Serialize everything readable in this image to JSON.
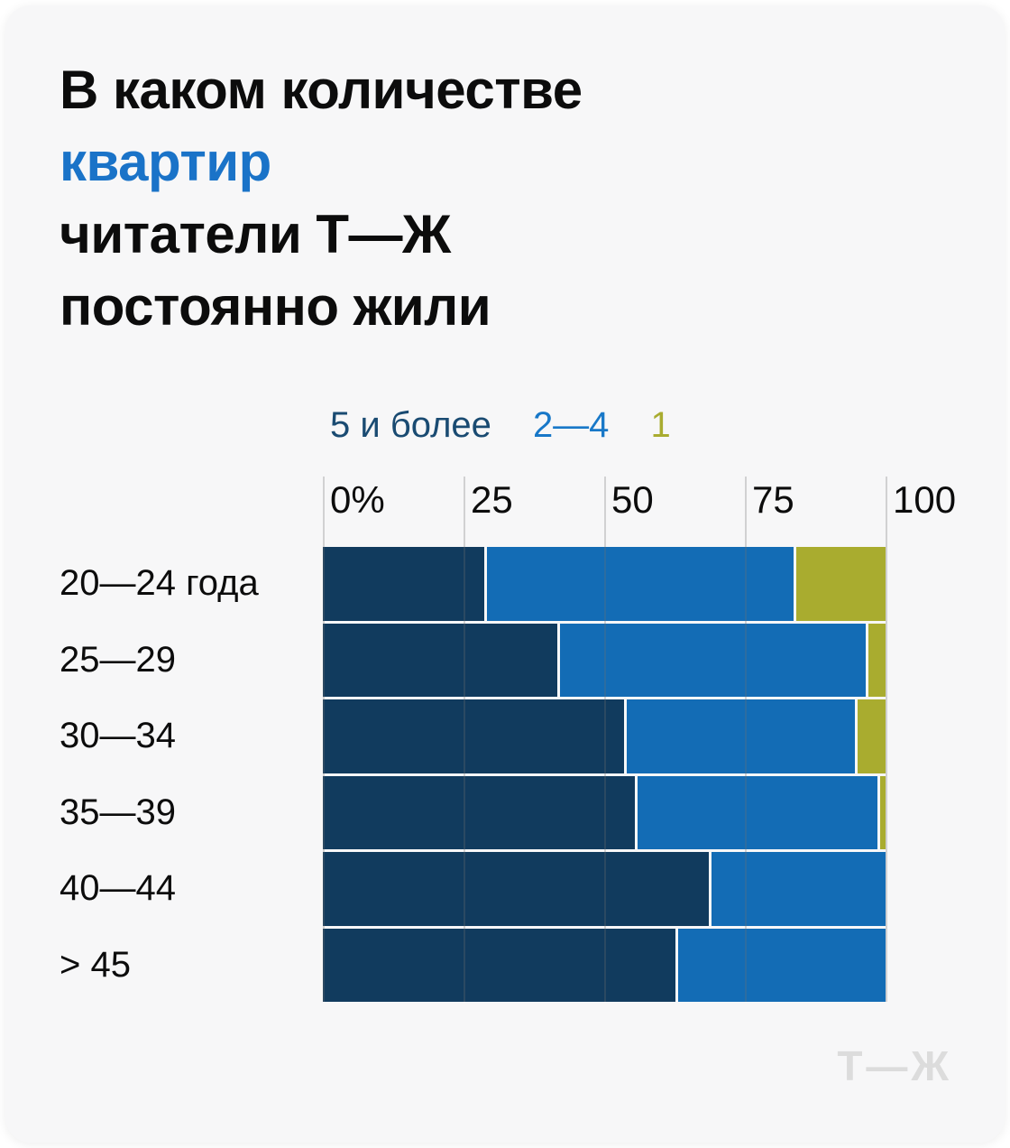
{
  "colors": {
    "page_bg": "#ffffff",
    "card_bg": "#f7f7f8",
    "text": "#0c0c0c",
    "accent": "#1a73c8",
    "grid": "rgba(110,110,110,0.28)",
    "logo": "#dcdcdc"
  },
  "title": {
    "line1": "В каком количестве",
    "line2": "квартир",
    "line3": "читатели Т—Ж",
    "line4": "постоянно жили"
  },
  "legend": {
    "items": [
      {
        "label": "5 и более",
        "color": "#1a4b72"
      },
      {
        "label": "2—4",
        "color": "#1878c8"
      },
      {
        "label": "1",
        "color": "#a9ac30"
      }
    ]
  },
  "chart_data": {
    "type": "bar",
    "variant": "horizontal-stacked-100",
    "unit": "%",
    "title": "В каком количестве квартир читатели Т—Ж постоянно жили",
    "categories": [
      "20—24 года",
      "25—29",
      "30—34",
      "35—39",
      "40—44",
      "> 45"
    ],
    "series": [
      {
        "name": "5 и более",
        "color": "#113b5e",
        "values": [
          29,
          42,
          54,
          56,
          69,
          63
        ]
      },
      {
        "name": "2—4",
        "color": "#136cb5",
        "values": [
          55,
          55,
          41,
          43,
          31,
          37
        ]
      },
      {
        "name": "1",
        "color": "#a9ac2f",
        "values": [
          16,
          3,
          5,
          1,
          0,
          0
        ]
      }
    ],
    "x_ticks": [
      "0%",
      "25",
      "50",
      "75",
      "100"
    ],
    "x_tick_values": [
      0,
      25,
      50,
      75,
      100
    ],
    "xlim": [
      0,
      100
    ],
    "grid": "vertical",
    "legend_position": "top"
  },
  "logo": {
    "text": "Т—Ж"
  }
}
